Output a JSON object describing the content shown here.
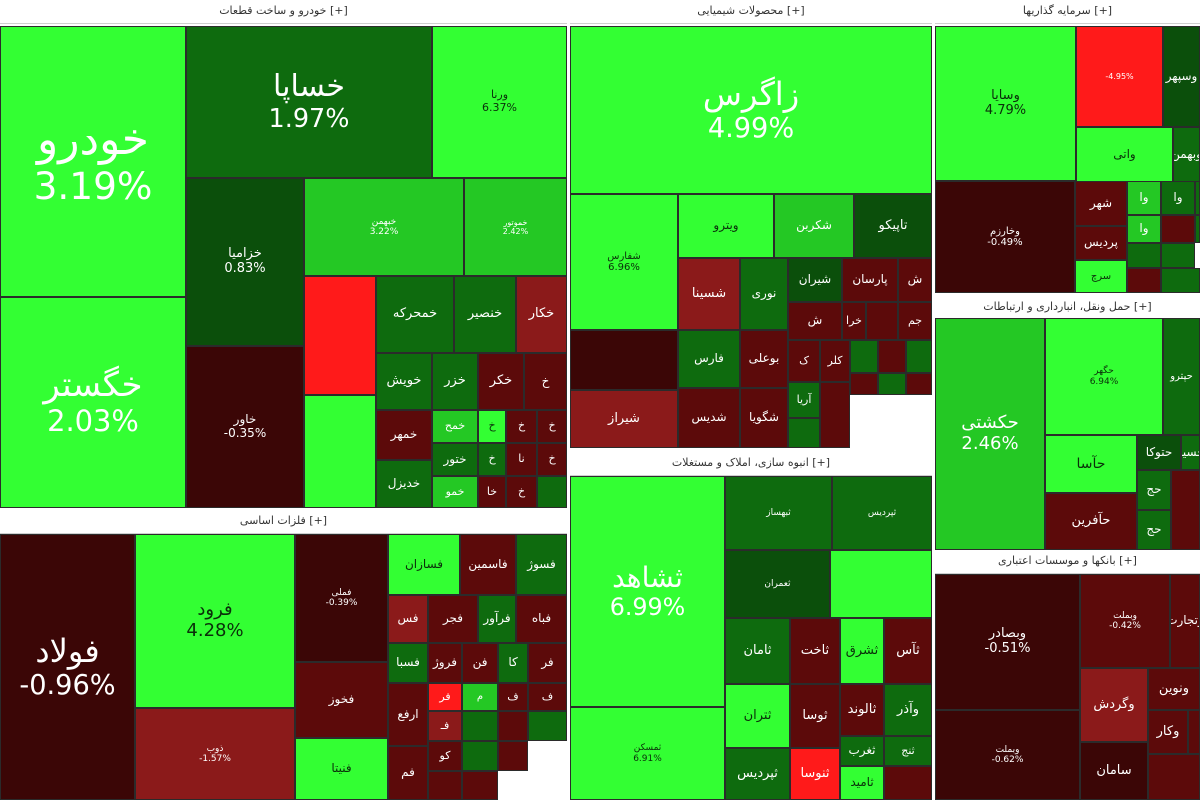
{
  "chart_data": {
    "type": "treemap",
    "colors": {
      "strong_green": "#33ff33",
      "green": "#24c824",
      "mid_green": "#1a9a1a",
      "dark_green": "#0e6b0e",
      "very_dark_green": "#0b4f0b",
      "dark_red": "#5c0a0a",
      "red": "#8b1a1a",
      "bright_red": "#ff1a1a",
      "maroon": "#3b0606"
    },
    "sectors": [
      {
        "name": "خودرو و ساخت قطعات [+]"
      },
      {
        "name": "محصولات شیمیایی [+]"
      },
      {
        "name": "سرمایه گذاریها [+]"
      },
      {
        "name": "حمل ونقل، انبارداری و ارتباطات [+]"
      },
      {
        "name": "فلزات اساسی [+]"
      },
      {
        "name": "انبوه سازی، املاک و مستغلات [+]"
      },
      {
        "name": "بانکها و موسسات اعتباری [+]"
      }
    ],
    "tiles": [
      {
        "s": 0,
        "name": "خودرو",
        "change": "3.19%",
        "c": "strong_green"
      },
      {
        "s": 0,
        "name": "خگستر",
        "change": "2.03%",
        "c": "strong_green"
      },
      {
        "s": 0,
        "name": "خساپا",
        "change": "1.97%",
        "c": "dark_green"
      },
      {
        "s": 0,
        "name": "ورنا",
        "change": "6.37%",
        "c": "strong_green"
      },
      {
        "s": 0,
        "name": "خزامیا",
        "change": "0.83%",
        "c": "very_dark_green"
      },
      {
        "s": 0,
        "name": "خاور",
        "change": "-0.35%",
        "c": "maroon"
      },
      {
        "s": 0,
        "name": "خبهمن",
        "change": "3.22%",
        "c": "green"
      },
      {
        "s": 0,
        "name": "خموتور",
        "change": "2.42%",
        "c": "green"
      },
      {
        "s": 0,
        "name": "",
        "change": "",
        "c": "bright_red"
      },
      {
        "s": 0,
        "name": "",
        "change": "",
        "c": "strong_green"
      },
      {
        "s": 0,
        "name": "خمحرکه",
        "change": "",
        "c": "dark_green"
      },
      {
        "s": 0,
        "name": "خنصیر",
        "change": "",
        "c": "dark_green"
      },
      {
        "s": 0,
        "name": "خکار",
        "change": "",
        "c": "red"
      },
      {
        "s": 0,
        "name": "خویش",
        "change": "",
        "c": "dark_green"
      },
      {
        "s": 0,
        "name": "خزر",
        "change": "",
        "c": "dark_green"
      },
      {
        "s": 0,
        "name": "خکر",
        "change": "",
        "c": "dark_red"
      },
      {
        "s": 0,
        "name": "خ",
        "change": "",
        "c": "dark_red"
      },
      {
        "s": 0,
        "name": "خمهر",
        "change": "",
        "c": "dark_red"
      },
      {
        "s": 0,
        "name": "خمح",
        "change": "",
        "c": "green"
      },
      {
        "s": 0,
        "name": "خ",
        "change": "",
        "c": "strong_green"
      },
      {
        "s": 0,
        "name": "خ",
        "change": "",
        "c": "dark_red"
      },
      {
        "s": 0,
        "name": "خ",
        "change": "",
        "c": "dark_red"
      },
      {
        "s": 0,
        "name": "ختور",
        "change": "",
        "c": "dark_green"
      },
      {
        "s": 0,
        "name": "خ",
        "change": "",
        "c": "dark_green"
      },
      {
        "s": 0,
        "name": "نا",
        "change": "",
        "c": "dark_red"
      },
      {
        "s": 0,
        "name": "خ",
        "change": "",
        "c": "dark_red"
      },
      {
        "s": 0,
        "name": "خدیزل",
        "change": "",
        "c": "dark_green"
      },
      {
        "s": 0,
        "name": "خمو",
        "change": "",
        "c": "green"
      },
      {
        "s": 0,
        "name": "خا",
        "change": "",
        "c": "dark_red"
      },
      {
        "s": 0,
        "name": "خ",
        "change": "",
        "c": "dark_red"
      },
      {
        "s": 0,
        "name": "",
        "change": "",
        "c": "dark_green"
      },
      {
        "s": 1,
        "name": "زاگرس",
        "change": "4.99%",
        "c": "strong_green"
      },
      {
        "s": 1,
        "name": "شفارس",
        "change": "6.96%",
        "c": "strong_green"
      },
      {
        "s": 1,
        "name": "ویترو",
        "change": "",
        "c": "strong_green"
      },
      {
        "s": 1,
        "name": "شکربن",
        "change": "",
        "c": "green"
      },
      {
        "s": 1,
        "name": "تاپیکو",
        "change": "",
        "c": "very_dark_green"
      },
      {
        "s": 1,
        "name": "شسینا",
        "change": "",
        "c": "red"
      },
      {
        "s": 1,
        "name": "نوری",
        "change": "",
        "c": "dark_green"
      },
      {
        "s": 1,
        "name": "شیران",
        "change": "",
        "c": "very_dark_green"
      },
      {
        "s": 1,
        "name": "پارسان",
        "change": "",
        "c": "dark_red"
      },
      {
        "s": 1,
        "name": "ش",
        "change": "",
        "c": "dark_red"
      },
      {
        "s": 1,
        "name": "ش",
        "change": "",
        "c": "dark_red"
      },
      {
        "s": 1,
        "name": "خرا",
        "change": "",
        "c": "dark_red"
      },
      {
        "s": 1,
        "name": "",
        "change": "",
        "c": "dark_red"
      },
      {
        "s": 1,
        "name": "جم",
        "change": "",
        "c": "dark_red"
      },
      {
        "s": 1,
        "name": "",
        "change": "",
        "c": "maroon"
      },
      {
        "s": 1,
        "name": "فارس",
        "change": "",
        "c": "dark_green"
      },
      {
        "s": 1,
        "name": "بوعلی",
        "change": "",
        "c": "dark_red"
      },
      {
        "s": 1,
        "name": "ک",
        "change": "",
        "c": "dark_red"
      },
      {
        "s": 1,
        "name": "کلر",
        "change": "",
        "c": "dark_red"
      },
      {
        "s": 1,
        "name": "شیراز",
        "change": "",
        "c": "red"
      },
      {
        "s": 1,
        "name": "شدیس",
        "change": "",
        "c": "dark_red"
      },
      {
        "s": 1,
        "name": "شگویا",
        "change": "",
        "c": "dark_red"
      },
      {
        "s": 1,
        "name": "آریا",
        "change": "",
        "c": "dark_green"
      },
      {
        "s": 1,
        "name": "",
        "change": "",
        "c": "dark_green"
      },
      {
        "s": 1,
        "name": "",
        "change": "",
        "c": "dark_red"
      },
      {
        "s": 1,
        "name": "",
        "change": "",
        "c": "dark_green"
      },
      {
        "s": 1,
        "name": "",
        "change": "",
        "c": "dark_red"
      },
      {
        "s": 1,
        "name": "",
        "change": "",
        "c": "dark_green"
      },
      {
        "s": 1,
        "name": "",
        "change": "",
        "c": "dark_red"
      },
      {
        "s": 1,
        "name": "",
        "change": "",
        "c": "dark_green"
      },
      {
        "s": 1,
        "name": "",
        "change": "",
        "c": "dark_red"
      },
      {
        "s": 2,
        "name": "",
        "change": "-4.95%",
        "c": "bright_red"
      },
      {
        "s": 2,
        "name": "وسپهر",
        "change": "",
        "c": "very_dark_green"
      },
      {
        "s": 2,
        "name": "وسایا",
        "change": "4.79%",
        "c": "strong_green"
      },
      {
        "s": 2,
        "name": "واتی",
        "change": "",
        "c": "strong_green"
      },
      {
        "s": 2,
        "name": "وبهمن",
        "change": "",
        "c": "dark_green"
      },
      {
        "s": 2,
        "name": "وخارزم",
        "change": "-0.49%",
        "c": "maroon"
      },
      {
        "s": 2,
        "name": "شهر",
        "change": "",
        "c": "dark_red"
      },
      {
        "s": 2,
        "name": "وا",
        "change": "",
        "c": "green"
      },
      {
        "s": 2,
        "name": "وا",
        "change": "",
        "c": "dark_green"
      },
      {
        "s": 2,
        "name": "",
        "change": "",
        "c": "dark_green"
      },
      {
        "s": 2,
        "name": "پردیس",
        "change": "",
        "c": "dark_red"
      },
      {
        "s": 2,
        "name": "وا",
        "change": "",
        "c": "green"
      },
      {
        "s": 2,
        "name": "",
        "change": "",
        "c": "dark_red"
      },
      {
        "s": 2,
        "name": "",
        "change": "",
        "c": "dark_green"
      },
      {
        "s": 2,
        "name": "سرچ",
        "change": "",
        "c": "strong_green"
      },
      {
        "s": 2,
        "name": "",
        "change": "",
        "c": "dark_green"
      },
      {
        "s": 2,
        "name": "",
        "change": "",
        "c": "dark_green"
      },
      {
        "s": 2,
        "name": "",
        "change": "",
        "c": "dark_red"
      },
      {
        "s": 2,
        "name": "",
        "change": "",
        "c": "dark_green"
      },
      {
        "s": 3,
        "name": "حکشتی",
        "change": "2.46%",
        "c": "green"
      },
      {
        "s": 3,
        "name": "حگهر",
        "change": "6.94%",
        "c": "strong_green"
      },
      {
        "s": 3,
        "name": "حپترو",
        "change": "",
        "c": "dark_green"
      },
      {
        "s": 3,
        "name": "حآسا",
        "change": "",
        "c": "strong_green"
      },
      {
        "s": 3,
        "name": "حتوکا",
        "change": "",
        "c": "very_dark_green"
      },
      {
        "s": 3,
        "name": "حسیر",
        "change": "",
        "c": "dark_green"
      },
      {
        "s": 3,
        "name": "حآفرین",
        "change": "",
        "c": "dark_red"
      },
      {
        "s": 3,
        "name": "حج",
        "change": "",
        "c": "dark_green"
      },
      {
        "s": 3,
        "name": "حج",
        "change": "",
        "c": "dark_green"
      },
      {
        "s": 3,
        "name": "",
        "change": "",
        "c": "dark_red"
      },
      {
        "s": 4,
        "name": "فولاد",
        "change": "-0.96%",
        "c": "maroon"
      },
      {
        "s": 4,
        "name": "فرود",
        "change": "4.28%",
        "c": "strong_green"
      },
      {
        "s": 4,
        "name": "ذوب",
        "change": "-1.57%",
        "c": "red"
      },
      {
        "s": 4,
        "name": "فملی",
        "change": "-0.39%",
        "c": "maroon"
      },
      {
        "s": 4,
        "name": "فخوز",
        "change": "",
        "c": "dark_red"
      },
      {
        "s": 4,
        "name": "فنیتا",
        "change": "",
        "c": "strong_green"
      },
      {
        "s": 4,
        "name": "فسازان",
        "change": "",
        "c": "strong_green"
      },
      {
        "s": 4,
        "name": "فاسمین",
        "change": "",
        "c": "dark_red"
      },
      {
        "s": 4,
        "name": "فسوژ",
        "change": "",
        "c": "dark_green"
      },
      {
        "s": 4,
        "name": "فس",
        "change": "",
        "c": "red"
      },
      {
        "s": 4,
        "name": "فجر",
        "change": "",
        "c": "dark_red"
      },
      {
        "s": 4,
        "name": "فرآور",
        "change": "",
        "c": "dark_green"
      },
      {
        "s": 4,
        "name": "فباه",
        "change": "",
        "c": "dark_red"
      },
      {
        "s": 4,
        "name": "فسبا",
        "change": "",
        "c": "dark_green"
      },
      {
        "s": 4,
        "name": "فروژ",
        "change": "",
        "c": "dark_red"
      },
      {
        "s": 4,
        "name": "فن",
        "change": "",
        "c": "dark_red"
      },
      {
        "s": 4,
        "name": "کا",
        "change": "",
        "c": "dark_green"
      },
      {
        "s": 4,
        "name": "فر",
        "change": "",
        "c": "dark_red"
      },
      {
        "s": 4,
        "name": "ارفع",
        "change": "",
        "c": "dark_red"
      },
      {
        "s": 4,
        "name": "فر",
        "change": "",
        "c": "bright_red"
      },
      {
        "s": 4,
        "name": "م",
        "change": "",
        "c": "green"
      },
      {
        "s": 4,
        "name": "ف",
        "change": "",
        "c": "dark_red"
      },
      {
        "s": 4,
        "name": "ف",
        "change": "",
        "c": "dark_red"
      },
      {
        "s": 4,
        "name": "فـ",
        "change": "",
        "c": "red"
      },
      {
        "s": 4,
        "name": "",
        "change": "",
        "c": "dark_green"
      },
      {
        "s": 4,
        "name": "",
        "change": "",
        "c": "dark_red"
      },
      {
        "s": 4,
        "name": "فم",
        "change": "",
        "c": "dark_red"
      },
      {
        "s": 4,
        "name": "کو",
        "change": "",
        "c": "dark_red"
      },
      {
        "s": 4,
        "name": "",
        "change": "",
        "c": "dark_green"
      },
      {
        "s": 4,
        "name": "",
        "change": "",
        "c": "dark_red"
      },
      {
        "s": 4,
        "name": "",
        "change": "",
        "c": "dark_green"
      },
      {
        "s": 4,
        "name": "",
        "change": "",
        "c": "dark_red"
      },
      {
        "s": 4,
        "name": "",
        "change": "",
        "c": "dark_red"
      },
      {
        "s": 5,
        "name": "ثشاهد",
        "change": "6.99%",
        "c": "strong_green"
      },
      {
        "s": 5,
        "name": "ثمسکن",
        "change": "6.91%",
        "c": "strong_green"
      },
      {
        "s": 5,
        "name": "ثبهساز",
        "change": "",
        "c": "dark_green"
      },
      {
        "s": 5,
        "name": "ثپردیس",
        "change": "",
        "c": "dark_green"
      },
      {
        "s": 5,
        "name": "ثعمران",
        "change": "",
        "c": "very_dark_green"
      },
      {
        "s": 5,
        "name": "",
        "change": "",
        "c": "strong_green"
      },
      {
        "s": 5,
        "name": "ثامان",
        "change": "",
        "c": "dark_green"
      },
      {
        "s": 5,
        "name": "ثاخت",
        "change": "",
        "c": "dark_red"
      },
      {
        "s": 5,
        "name": "ثشرق",
        "change": "",
        "c": "strong_green"
      },
      {
        "s": 5,
        "name": "ثآس",
        "change": "",
        "c": "dark_red"
      },
      {
        "s": 5,
        "name": "ثتران",
        "change": "",
        "c": "strong_green"
      },
      {
        "s": 5,
        "name": "ثوسا",
        "change": "",
        "c": "dark_red"
      },
      {
        "s": 5,
        "name": "ثالوند",
        "change": "",
        "c": "dark_red"
      },
      {
        "s": 5,
        "name": "وآذر",
        "change": "",
        "c": "dark_green"
      },
      {
        "s": 5,
        "name": "ثغرب",
        "change": "",
        "c": "dark_green"
      },
      {
        "s": 5,
        "name": "ثنج",
        "change": "",
        "c": "dark_green"
      },
      {
        "s": 5,
        "name": "ثپردیس",
        "change": "",
        "c": "dark_green"
      },
      {
        "s": 5,
        "name": "ثنوسا",
        "change": "",
        "c": "bright_red"
      },
      {
        "s": 5,
        "name": "ثامید",
        "change": "",
        "c": "strong_green"
      },
      {
        "s": 5,
        "name": "",
        "change": "",
        "c": "dark_red"
      },
      {
        "s": 6,
        "name": "وبصادر",
        "change": "-0.51%",
        "c": "maroon"
      },
      {
        "s": 6,
        "name": "وبملت",
        "change": "-0.62%",
        "c": "maroon"
      },
      {
        "s": 6,
        "name": "وبملت",
        "change": "-0.42%",
        "c": "dark_red"
      },
      {
        "s": 6,
        "name": "وتجارت",
        "change": "",
        "c": "dark_red"
      },
      {
        "s": 6,
        "name": "ونوین",
        "change": "",
        "c": "dark_red"
      },
      {
        "s": 6,
        "name": "وگردش",
        "change": "",
        "c": "red"
      },
      {
        "s": 6,
        "name": "وکار",
        "change": "",
        "c": "dark_red"
      },
      {
        "s": 6,
        "name": "سامان",
        "change": "",
        "c": "maroon"
      },
      {
        "s": 6,
        "name": "",
        "change": "",
        "c": "dark_red"
      },
      {
        "s": 6,
        "name": "",
        "change": "",
        "c": "dark_red"
      }
    ]
  }
}
